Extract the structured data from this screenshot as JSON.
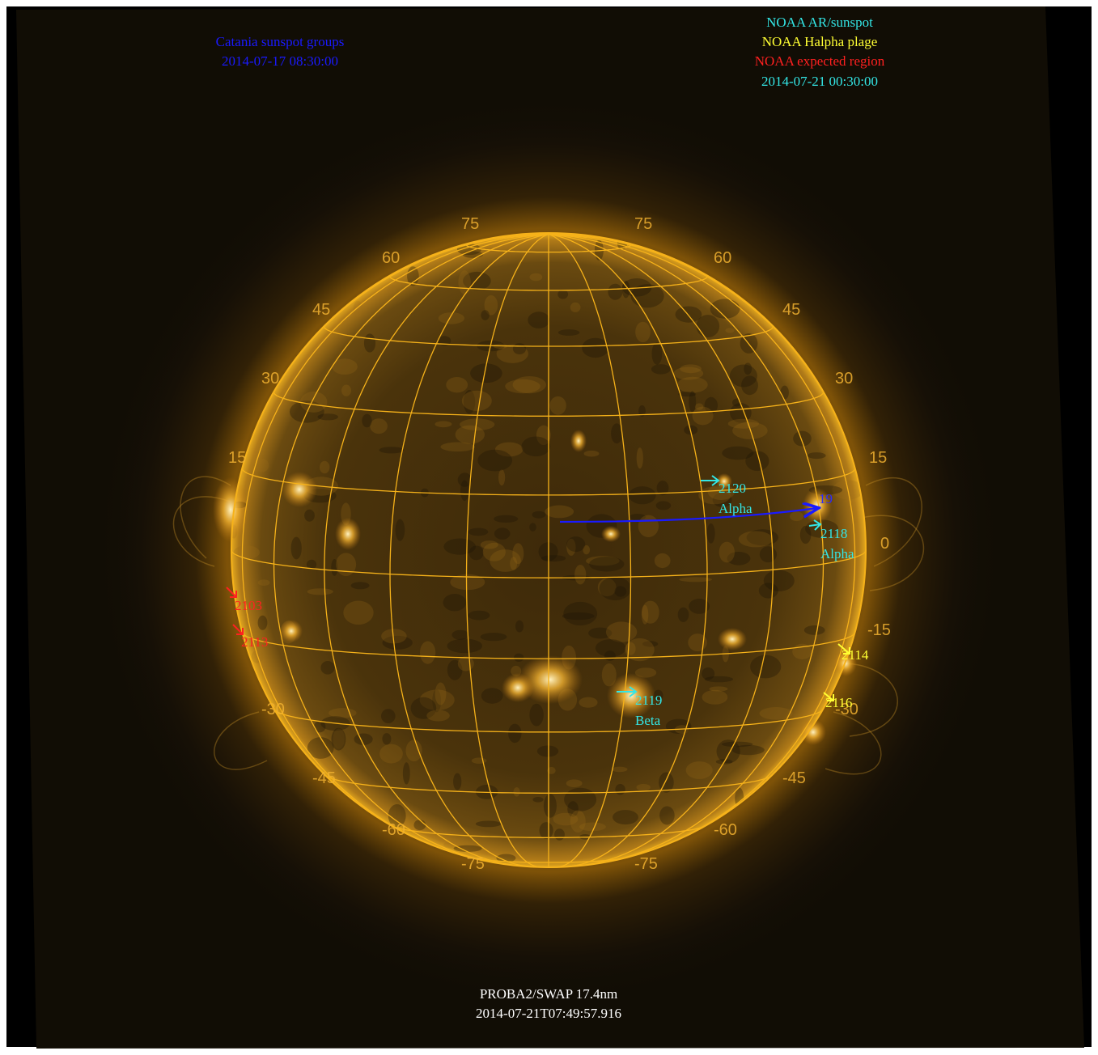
{
  "instrument": {
    "line1": "PROBA2/SWAP 17.4nm",
    "line2": "2014-07-21T07:49:57.916"
  },
  "catania": {
    "title": "Catania sunspot groups",
    "time": "2014-07-17 08:30:00",
    "color": "#1a1aff"
  },
  "noaa_legend": {
    "ar_sunspot": "NOAA AR/sunspot",
    "halpha_plage": "NOAA Halpha plage",
    "expected_region": "NOAA expected region",
    "time": "2014-07-21 00:30:00",
    "colors": {
      "ar_sunspot": "#33e6e6",
      "halpha_plage": "#ffff33",
      "expected_region": "#ff2020",
      "time": "#33e6e6"
    }
  },
  "grid": {
    "color": "#f6b21a",
    "latitude_labels_left": [
      "75",
      "60",
      "45",
      "30",
      "15",
      "-30",
      "-45",
      "-60",
      "-75"
    ],
    "latitude_labels_right": [
      "75",
      "60",
      "45",
      "30",
      "15",
      "0",
      "-15",
      "-30",
      "-45",
      "-60",
      "-75"
    ]
  },
  "regions": {
    "ar_2120": {
      "number": "2120",
      "class": "Alpha"
    },
    "ar_2118": {
      "number": "2118",
      "class": "Alpha"
    },
    "ar_2119": {
      "number": "2119",
      "class": "Beta"
    },
    "plage_2114": {
      "number": "2114"
    },
    "plage_2116": {
      "number": "2116"
    },
    "expected_2103": {
      "number": "2103"
    },
    "expected_2113": {
      "number": "2113"
    },
    "catania_19": {
      "number": "19"
    }
  }
}
